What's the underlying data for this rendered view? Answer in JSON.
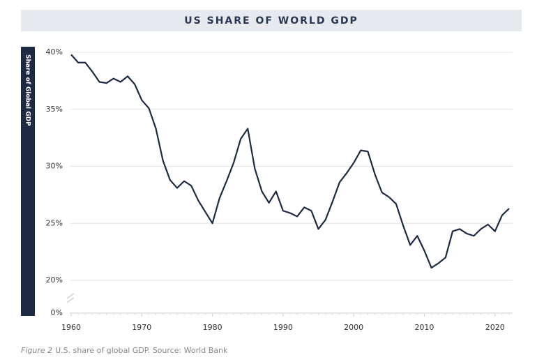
{
  "chart_data": {
    "type": "line",
    "title": "US SHARE OF WORLD GDP",
    "y_label": "Share of Global GDP",
    "caption_label": "Figure 2",
    "caption": "U.S. share of global GDP.  Source: World Bank",
    "x": [
      1960,
      1961,
      1962,
      1963,
      1964,
      1965,
      1966,
      1967,
      1968,
      1969,
      1970,
      1971,
      1972,
      1973,
      1974,
      1975,
      1976,
      1977,
      1978,
      1979,
      1980,
      1981,
      1982,
      1983,
      1984,
      1985,
      1986,
      1987,
      1988,
      1989,
      1990,
      1991,
      1992,
      1993,
      1994,
      1995,
      1996,
      1997,
      1998,
      1999,
      2000,
      2001,
      2002,
      2003,
      2004,
      2005,
      2006,
      2007,
      2008,
      2009,
      2010,
      2011,
      2012,
      2013,
      2014,
      2015,
      2016,
      2017,
      2018,
      2019,
      2020,
      2021,
      2022
    ],
    "series": [
      {
        "name": "US share of world GDP",
        "color": "#1e2a44",
        "values": [
          39.8,
          39.1,
          39.1,
          38.3,
          37.4,
          37.3,
          37.7,
          37.4,
          37.9,
          37.2,
          35.8,
          35.1,
          33.3,
          30.5,
          28.8,
          28.1,
          28.7,
          28.3,
          27.0,
          26.0,
          25.0,
          27.2,
          28.7,
          30.3,
          32.4,
          33.3,
          29.8,
          27.8,
          26.8,
          27.8,
          26.1,
          25.9,
          25.6,
          26.4,
          26.1,
          24.5,
          25.3,
          26.9,
          28.6,
          29.4,
          30.3,
          31.4,
          31.3,
          29.3,
          27.7,
          27.3,
          26.7,
          24.8,
          23.1,
          23.9,
          22.6,
          21.1,
          21.5,
          22.0,
          24.3,
          24.5,
          24.1,
          23.9,
          24.5,
          24.9,
          24.3,
          25.7,
          26.3
        ]
      }
    ],
    "xlim": [
      1960,
      2022
    ],
    "xticks": [
      1960,
      1970,
      1980,
      1990,
      2000,
      2010,
      2020
    ],
    "ylim": [
      0,
      40
    ],
    "axis_break": [
      0,
      20
    ],
    "yticks": [
      {
        "value": 0,
        "label": "0%"
      },
      {
        "value": 20,
        "label": "20%"
      },
      {
        "value": 25,
        "label": "25%"
      },
      {
        "value": 30,
        "label": "30%"
      },
      {
        "value": 35,
        "label": "35%"
      },
      {
        "value": 40,
        "label": "40%"
      }
    ],
    "grid": true
  }
}
